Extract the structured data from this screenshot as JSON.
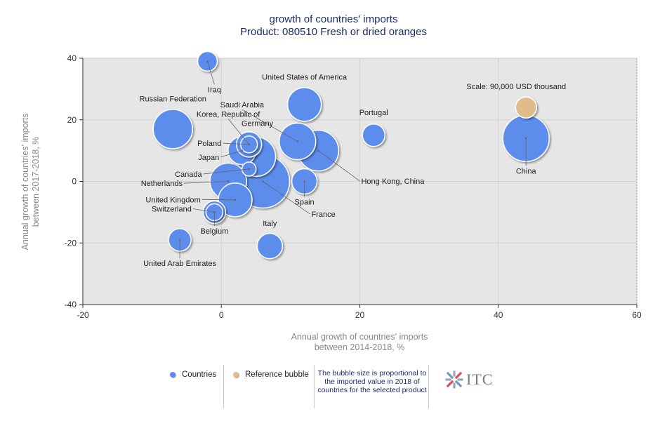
{
  "chart_data": {
    "type": "bubble",
    "title": "growth of countries' imports",
    "subtitle": "Product: 080510 Fresh or dried oranges",
    "xlabel_line1": "Annual growth of countries' imports",
    "xlabel_line2": "between 2014-2018, %",
    "ylabel_line1": "Annual growth of countries' imports",
    "ylabel_line2": "between 2017-2018, %",
    "xlim": [
      -20,
      60
    ],
    "ylim": [
      -40,
      40
    ],
    "xticks": [
      -20,
      0,
      20,
      40,
      60
    ],
    "yticks": [
      -40,
      -20,
      0,
      20,
      40
    ],
    "series": [
      {
        "name": "Iraq",
        "x": -2,
        "y": 39,
        "size": 14
      },
      {
        "name": "Russian Federation",
        "x": -7,
        "y": 17,
        "size": 28
      },
      {
        "name": "United States of America",
        "x": 12,
        "y": 25,
        "size": 24
      },
      {
        "name": "Saudi Arabia",
        "x": 11,
        "y": 13,
        "size": 26
      },
      {
        "name": "Korea, Republic of",
        "x": 4,
        "y": 12,
        "size": 18
      },
      {
        "name": "Germany",
        "x": 3,
        "y": 10,
        "size": 20
      },
      {
        "name": "Poland",
        "x": 4,
        "y": 12,
        "size": 12
      },
      {
        "name": "Japan",
        "x": 5,
        "y": 8,
        "size": 28
      },
      {
        "name": "Canada",
        "x": 4,
        "y": 4,
        "size": 10
      },
      {
        "name": "Netherlands",
        "x": 1,
        "y": 0,
        "size": 26
      },
      {
        "name": "United Kingdom",
        "x": 2,
        "y": -6,
        "size": 24
      },
      {
        "name": "Switzerland",
        "x": -1,
        "y": -10,
        "size": 16
      },
      {
        "name": "Belgium",
        "x": -1,
        "y": -10,
        "size": 12
      },
      {
        "name": "France",
        "x": 6,
        "y": 0,
        "size": 38
      },
      {
        "name": "Spain",
        "x": 12,
        "y": 0,
        "size": 18
      },
      {
        "name": "Hong Kong, China",
        "x": 14,
        "y": 10,
        "size": 29
      },
      {
        "name": "Portugal",
        "x": 22,
        "y": 15,
        "size": 16
      },
      {
        "name": "China",
        "x": 44,
        "y": 14,
        "size": 33
      },
      {
        "name": "Italy",
        "x": 7,
        "y": -21,
        "size": 18
      },
      {
        "name": "United Arab Emirates",
        "x": -6,
        "y": -19,
        "size": 16
      }
    ],
    "reference_bubble": {
      "label": "Scale: 90,000 USD thousand",
      "x": 44,
      "y": 24,
      "size": 15
    },
    "legend": {
      "countries_label": "Countries",
      "reference_label": "Reference bubble",
      "note": "The bubble size is proportional to the imported value in 2018 of countries for the selected product",
      "logo_text": "ITC",
      "countries_color": "#5b8ded",
      "reference_color": "#e0bc8a"
    },
    "colors": {
      "plot_bg": "#e6e6e6",
      "bubble": "#5b8ded",
      "reference": "#e0bc8a"
    }
  }
}
